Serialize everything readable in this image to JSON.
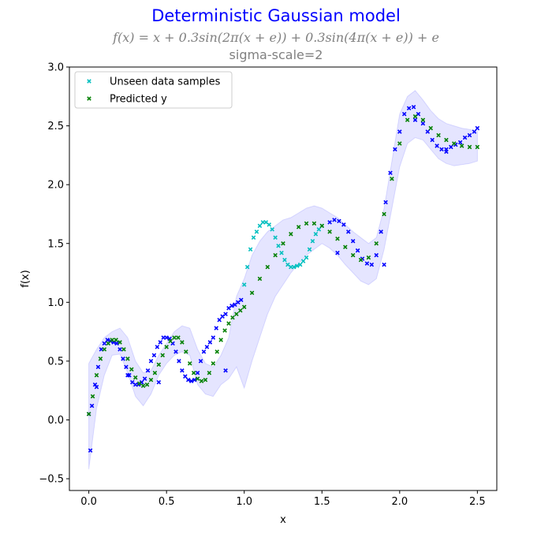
{
  "colors": {
    "title": "#0000ff",
    "subtitle": "#808080",
    "band": "#0000ff",
    "seen": "#0000ff",
    "unseen": "#00bfbf",
    "predicted": "#008000"
  },
  "header": {
    "title": "Deterministic Gaussian model",
    "formula": "f(x) = x + 0.3sin(2π(x + e)) + 0.3sin(4π(x + e)) + e",
    "subtitle": "sigma-scale=2"
  },
  "chart_data": {
    "type": "scatter",
    "xlabel": "x",
    "ylabel": "f(x)",
    "xlim": [
      -0.125,
      2.625
    ],
    "ylim": [
      -0.6,
      3.0
    ],
    "xticks": [
      "0.0",
      "0.5",
      "1.0",
      "1.5",
      "2.0",
      "2.5"
    ],
    "yticks": [
      "−0.5",
      "0.0",
      "0.5",
      "1.0",
      "1.5",
      "2.0",
      "2.5",
      "3.0"
    ],
    "legend": {
      "placement": "top-left",
      "entries": [
        "Unseen data samples",
        "Predicted y"
      ]
    },
    "series": [
      {
        "name": "Unseen data samples",
        "marker": "x",
        "x": [
          1.0,
          1.02,
          1.04,
          1.06,
          1.08,
          1.1,
          1.12,
          1.14,
          1.16,
          1.18,
          1.2,
          1.22,
          1.24,
          1.26,
          1.28,
          1.3,
          1.32,
          1.34,
          1.36,
          1.38,
          1.4,
          1.42,
          1.44,
          1.46,
          1.48,
          1.5
        ],
        "y": [
          1.15,
          1.3,
          1.45,
          1.55,
          1.6,
          1.65,
          1.68,
          1.68,
          1.66,
          1.62,
          1.55,
          1.48,
          1.42,
          1.36,
          1.32,
          1.3,
          1.3,
          1.31,
          1.32,
          1.35,
          1.38,
          1.45,
          1.52,
          1.58,
          1.62,
          1.65
        ]
      },
      {
        "name": "",
        "marker": "x",
        "x": [
          0.0,
          0.02,
          0.04,
          0.06,
          0.08,
          0.1,
          0.12,
          0.14,
          0.16,
          0.18,
          0.2,
          0.22,
          0.24,
          0.26,
          0.28,
          0.3,
          0.32,
          0.34,
          0.36,
          0.38,
          0.4,
          0.42,
          0.44,
          0.46,
          0.48,
          0.5,
          0.52,
          0.54,
          0.56,
          0.58,
          0.6,
          0.62,
          0.64,
          0.66,
          0.68,
          0.7,
          0.72,
          0.74,
          0.76,
          0.78,
          0.8,
          0.82,
          0.84,
          0.86,
          0.88,
          0.9,
          0.92,
          0.94,
          0.96,
          0.98,
          1.55,
          1.58,
          1.61,
          1.64,
          1.67,
          1.7,
          1.73,
          1.76,
          1.79,
          1.82,
          1.85,
          1.88,
          1.91,
          1.94,
          1.97,
          2.0,
          2.03,
          2.06,
          2.09,
          2.12,
          2.15,
          2.18,
          2.21,
          2.24,
          2.27,
          2.3,
          2.33,
          2.36,
          2.39,
          2.42,
          2.45,
          2.48,
          2.5,
          0.01,
          0.05,
          0.25,
          0.45,
          0.88,
          1.6,
          1.9,
          2.1,
          2.3
        ],
        "y": [
          0.05,
          0.12,
          0.3,
          0.45,
          0.6,
          0.65,
          0.68,
          0.67,
          0.66,
          0.65,
          0.6,
          0.52,
          0.45,
          0.38,
          0.32,
          0.3,
          0.3,
          0.32,
          0.35,
          0.42,
          0.5,
          0.55,
          0.62,
          0.66,
          0.7,
          0.7,
          0.69,
          0.65,
          0.58,
          0.5,
          0.42,
          0.37,
          0.34,
          0.33,
          0.34,
          0.4,
          0.5,
          0.58,
          0.62,
          0.66,
          0.7,
          0.78,
          0.85,
          0.88,
          0.9,
          0.95,
          0.97,
          0.98,
          1.0,
          1.02,
          1.68,
          1.7,
          1.69,
          1.66,
          1.6,
          1.52,
          1.44,
          1.37,
          1.33,
          1.32,
          1.4,
          1.6,
          1.85,
          2.1,
          2.3,
          2.45,
          2.6,
          2.65,
          2.66,
          2.6,
          2.52,
          2.45,
          2.38,
          2.33,
          2.3,
          2.3,
          2.32,
          2.34,
          2.36,
          2.4,
          2.42,
          2.45,
          2.48,
          -0.26,
          0.28,
          0.38,
          0.32,
          0.42,
          1.42,
          1.32,
          2.55,
          2.28
        ]
      },
      {
        "name": "Predicted y",
        "marker": "x",
        "x": [
          0.0,
          0.025,
          0.05,
          0.075,
          0.1,
          0.125,
          0.15,
          0.175,
          0.2,
          0.225,
          0.25,
          0.275,
          0.3,
          0.325,
          0.35,
          0.375,
          0.4,
          0.425,
          0.45,
          0.475,
          0.5,
          0.525,
          0.55,
          0.575,
          0.6,
          0.625,
          0.65,
          0.675,
          0.7,
          0.725,
          0.75,
          0.775,
          0.8,
          0.825,
          0.85,
          0.875,
          0.9,
          0.925,
          0.95,
          0.975,
          1.0,
          1.05,
          1.1,
          1.15,
          1.2,
          1.25,
          1.3,
          1.35,
          1.4,
          1.45,
          1.5,
          1.55,
          1.6,
          1.65,
          1.7,
          1.75,
          1.8,
          1.85,
          1.9,
          1.95,
          2.0,
          2.05,
          2.1,
          2.15,
          2.2,
          2.25,
          2.3,
          2.35,
          2.4,
          2.45,
          2.5
        ],
        "y": [
          0.05,
          0.2,
          0.38,
          0.52,
          0.6,
          0.65,
          0.68,
          0.68,
          0.66,
          0.6,
          0.52,
          0.43,
          0.36,
          0.31,
          0.29,
          0.3,
          0.34,
          0.4,
          0.47,
          0.55,
          0.62,
          0.67,
          0.7,
          0.7,
          0.66,
          0.58,
          0.48,
          0.4,
          0.35,
          0.33,
          0.34,
          0.4,
          0.48,
          0.58,
          0.68,
          0.76,
          0.82,
          0.87,
          0.9,
          0.93,
          0.96,
          1.08,
          1.2,
          1.3,
          1.4,
          1.5,
          1.58,
          1.64,
          1.67,
          1.67,
          1.65,
          1.6,
          1.54,
          1.47,
          1.4,
          1.36,
          1.38,
          1.5,
          1.75,
          2.05,
          2.35,
          2.55,
          2.58,
          2.55,
          2.48,
          2.42,
          2.38,
          2.35,
          2.33,
          2.32,
          2.32
        ]
      }
    ],
    "band": {
      "x": [
        0.0,
        0.05,
        0.1,
        0.15,
        0.2,
        0.25,
        0.3,
        0.35,
        0.4,
        0.45,
        0.5,
        0.55,
        0.6,
        0.65,
        0.7,
        0.75,
        0.8,
        0.85,
        0.9,
        0.95,
        1.0,
        1.05,
        1.1,
        1.15,
        1.2,
        1.25,
        1.3,
        1.35,
        1.4,
        1.45,
        1.5,
        1.55,
        1.6,
        1.65,
        1.7,
        1.75,
        1.8,
        1.85,
        1.9,
        1.95,
        2.0,
        2.05,
        2.1,
        2.15,
        2.2,
        2.25,
        2.3,
        2.35,
        2.4,
        2.45,
        2.5
      ],
      "upper": [
        0.48,
        0.6,
        0.7,
        0.75,
        0.78,
        0.7,
        0.5,
        0.4,
        0.42,
        0.55,
        0.65,
        0.75,
        0.8,
        0.78,
        0.6,
        0.48,
        0.45,
        0.55,
        0.7,
        1.05,
        1.2,
        1.4,
        1.52,
        1.6,
        1.65,
        1.7,
        1.72,
        1.76,
        1.8,
        1.82,
        1.8,
        1.76,
        1.72,
        1.66,
        1.6,
        1.55,
        1.5,
        1.55,
        1.8,
        2.2,
        2.6,
        2.75,
        2.8,
        2.72,
        2.63,
        2.56,
        2.52,
        2.5,
        2.48,
        2.47,
        2.45
      ],
      "lower": [
        -0.42,
        0.1,
        0.38,
        0.55,
        0.56,
        0.4,
        0.2,
        0.12,
        0.22,
        0.38,
        0.48,
        0.55,
        0.58,
        0.55,
        0.3,
        0.22,
        0.2,
        0.3,
        0.35,
        0.45,
        0.27,
        0.5,
        0.7,
        0.9,
        1.05,
        1.15,
        1.25,
        1.33,
        1.4,
        1.45,
        1.5,
        1.46,
        1.4,
        1.32,
        1.25,
        1.18,
        1.15,
        1.2,
        1.45,
        1.8,
        2.15,
        2.35,
        2.4,
        2.38,
        2.3,
        2.22,
        2.18,
        2.16,
        2.17,
        2.18,
        2.2
      ]
    }
  }
}
